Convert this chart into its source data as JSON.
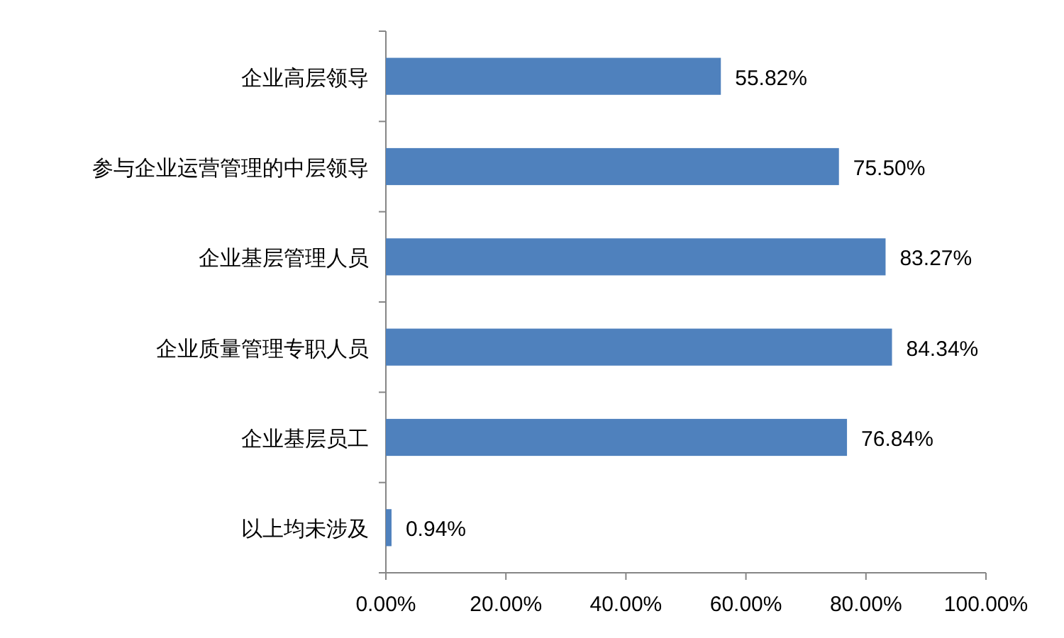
{
  "chart_data": {
    "type": "bar",
    "orientation": "horizontal",
    "categories": [
      "企业高层领导",
      "参与企业运营管理的中层领导",
      "企业基层管理人员",
      "企业质量管理专职人员",
      "企业基层员工",
      "以上均未涉及"
    ],
    "values": [
      55.82,
      75.5,
      83.27,
      84.34,
      76.84,
      0.94
    ],
    "value_labels": [
      "55.82%",
      "75.50%",
      "83.27%",
      "84.34%",
      "76.84%",
      "0.94%"
    ],
    "color": "#4f81bd",
    "xlim": [
      0,
      100
    ],
    "xticks": [
      {
        "value": 0,
        "label": "0.00%"
      },
      {
        "value": 20,
        "label": "20.00%"
      },
      {
        "value": 40,
        "label": "40.00%"
      },
      {
        "value": 60,
        "label": "60.00%"
      },
      {
        "value": 80,
        "label": "80.00%"
      },
      {
        "value": 100,
        "label": "100.00%"
      }
    ],
    "grid": false
  }
}
